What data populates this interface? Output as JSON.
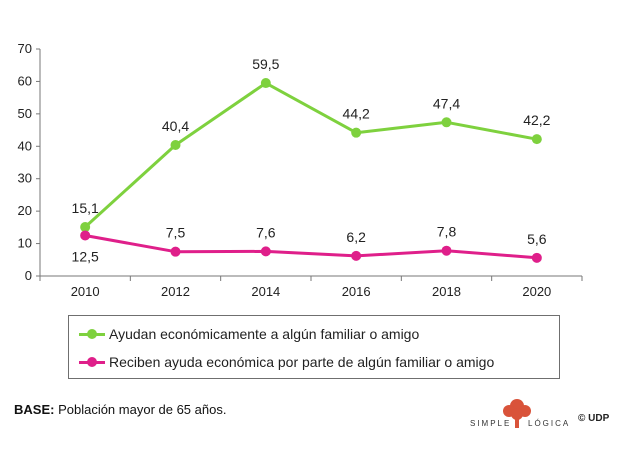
{
  "chart_data": {
    "type": "line",
    "title": "",
    "xlabel": "",
    "ylabel": "",
    "categories": [
      "2010",
      "2012",
      "2014",
      "2016",
      "2018",
      "2020"
    ],
    "ylim": [
      0,
      70
    ],
    "yticks": [
      "0",
      "10",
      "20",
      "30",
      "40",
      "50",
      "60",
      "70"
    ],
    "grid": false,
    "series": [
      {
        "name": "Ayudan económicamente a algún familiar o amigo",
        "color": "#7ed13e",
        "values": [
          15.1,
          40.4,
          59.5,
          44.2,
          47.4,
          42.2
        ],
        "labels": [
          "15,1",
          "40,4",
          "59,5",
          "44,2",
          "47,4",
          "42,2"
        ]
      },
      {
        "name": "Reciben ayuda económica por parte de algún familiar o amigo",
        "color": "#df1f8a",
        "values": [
          12.5,
          7.5,
          7.6,
          6.2,
          7.8,
          5.6
        ],
        "labels": [
          "12,5",
          "7,5",
          "7,6",
          "6,2",
          "7,8",
          "5,6"
        ]
      }
    ]
  },
  "legend": {
    "items": [
      "Ayudan económicamente a algún familiar o amigo",
      "Reciben ayuda económica por parte de algún familiar o amigo"
    ]
  },
  "base_note": {
    "label": "BASE:",
    "text": " Población mayor de 65 años."
  },
  "logo": {
    "word1": "SIMPLE",
    "word2": "LÓGICA",
    "mark": "©",
    "suffix": "UDP",
    "tree_color": "#d9533a"
  }
}
